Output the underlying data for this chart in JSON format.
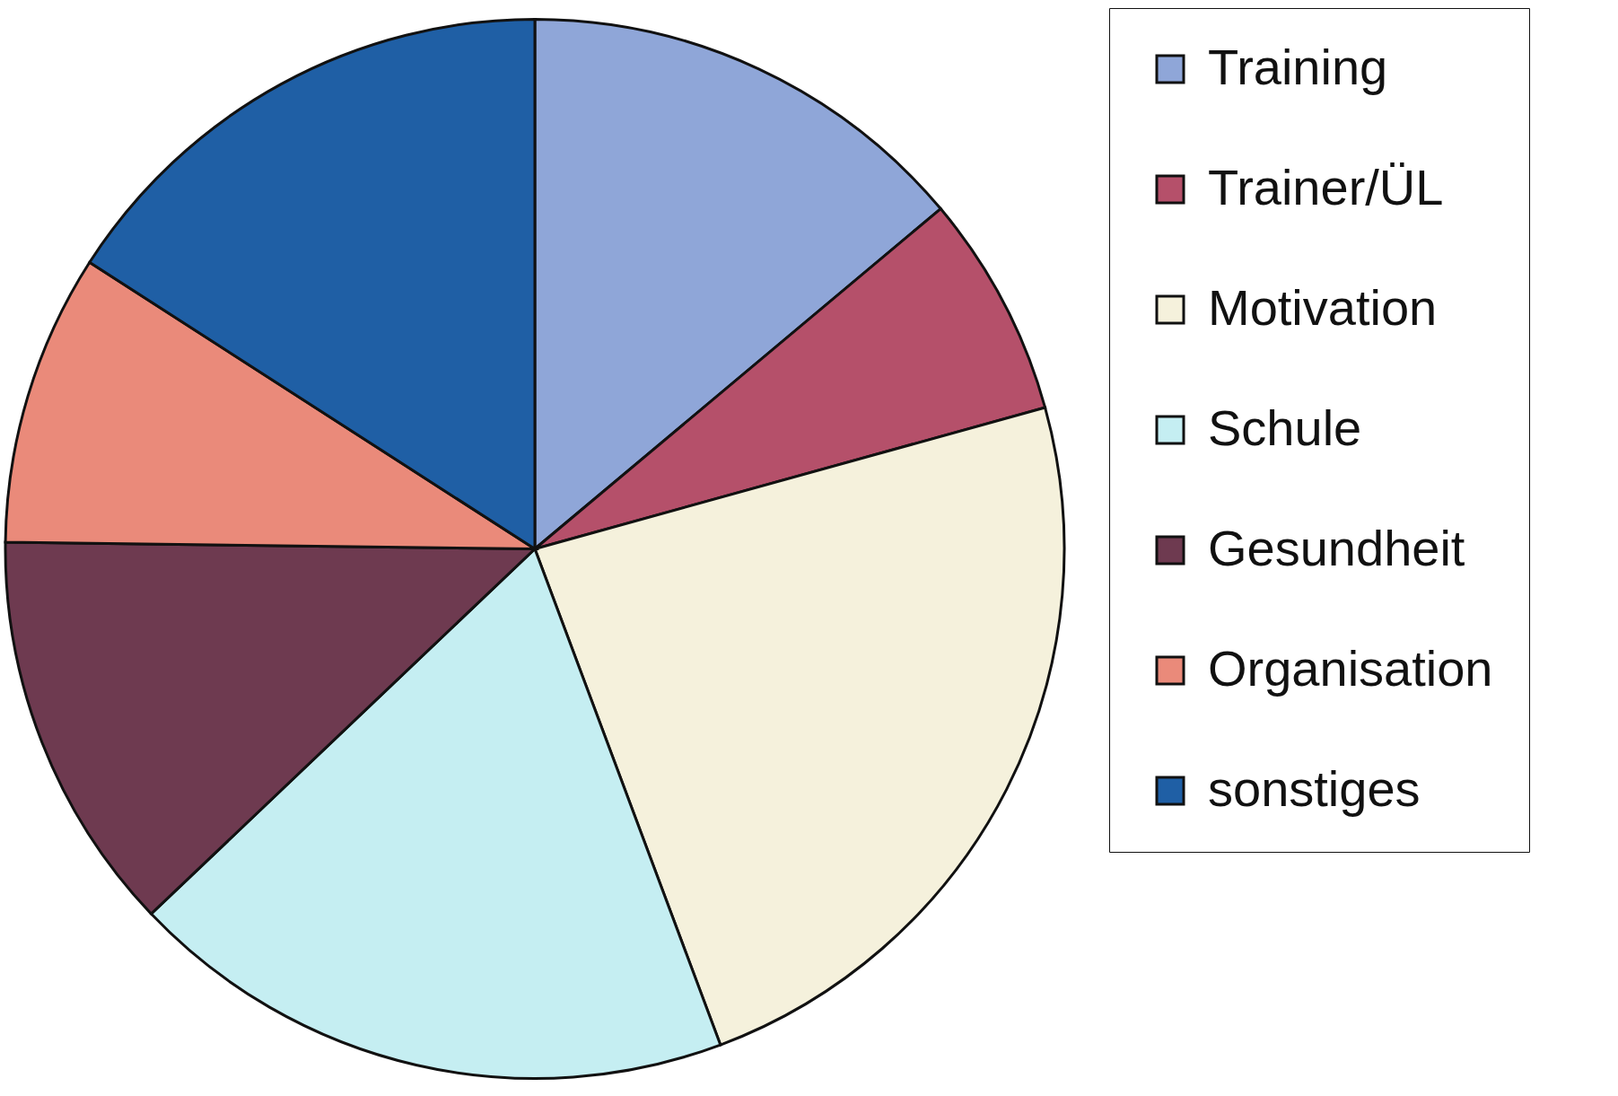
{
  "chart_data": {
    "type": "pie",
    "categories": [
      "Training",
      "Trainer/ÜL",
      "Motivation",
      "Schule",
      "Gesundheit",
      "Organisation",
      "sonstiges"
    ],
    "values": [
      13.9,
      6.8,
      23.6,
      18.6,
      12.3,
      8.9,
      15.9
    ],
    "colors": [
      "#8fa6d8",
      "#b5506a",
      "#f5f1dc",
      "#c5eef2",
      "#6e3a50",
      "#ea8a7a",
      "#1f5fa5"
    ],
    "legend": "right"
  }
}
